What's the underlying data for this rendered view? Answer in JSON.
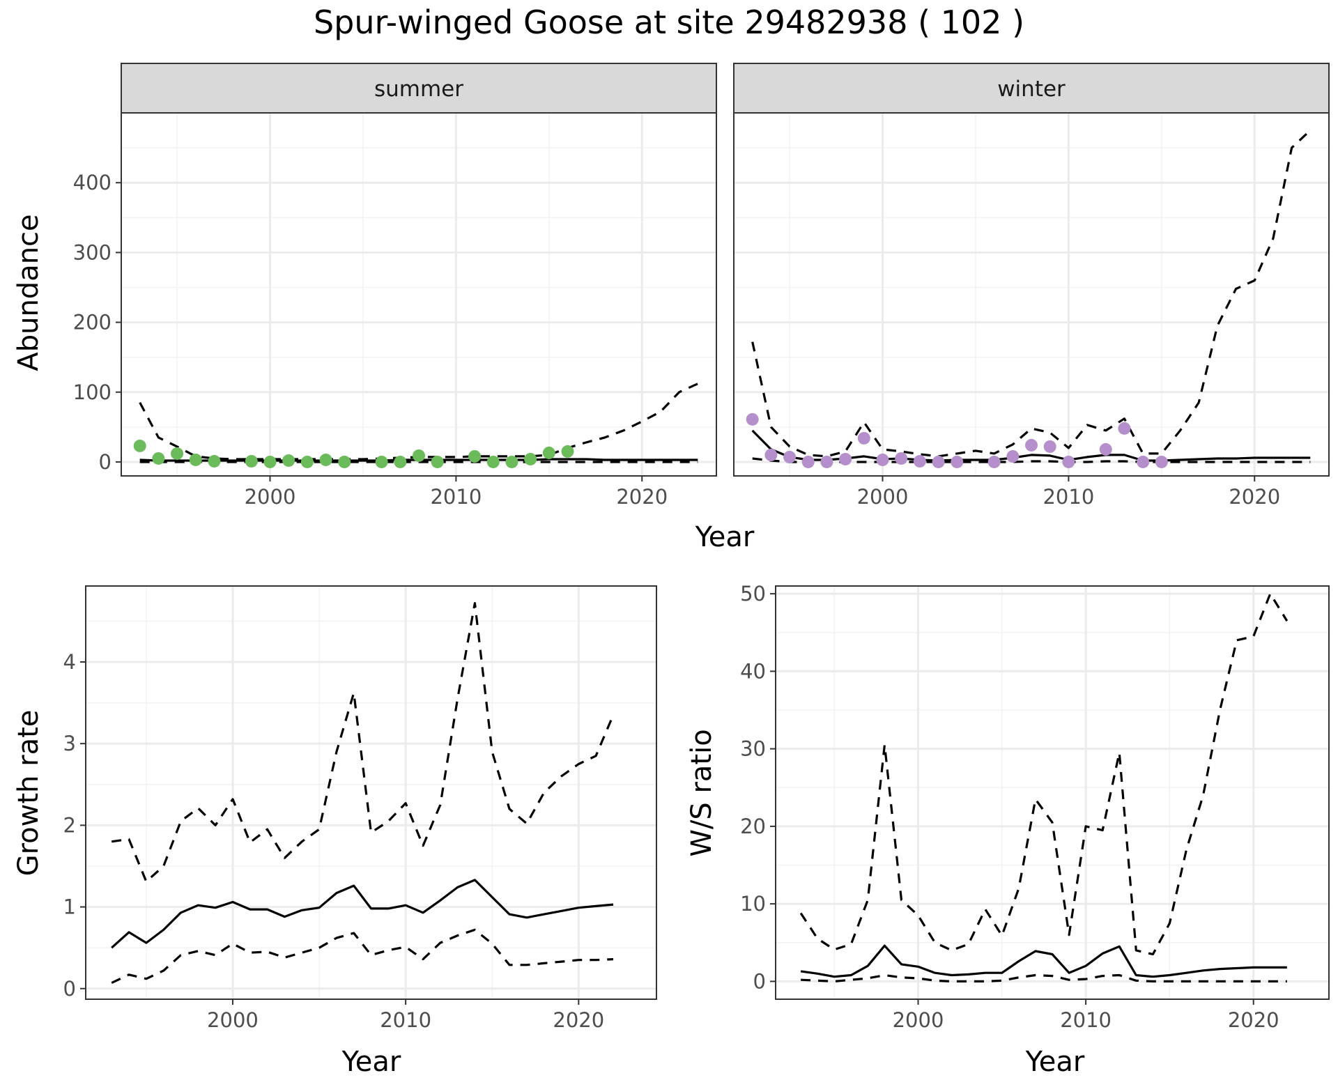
{
  "title": "Spur-winged Goose at site 29482938 ( 102 )",
  "chart_data": [
    {
      "type": "scatter",
      "facet": "summer",
      "xlabel": "Year",
      "ylabel": "Abundance",
      "xlim": [
        1992,
        2024
      ],
      "ylim": [
        -20,
        500
      ],
      "x_ticks": [
        2000,
        2010,
        2020
      ],
      "y_ticks": [
        0,
        100,
        200,
        300,
        400
      ],
      "point_color": "#6cbb5a",
      "grid": true,
      "points": {
        "x": [
          1993,
          1994,
          1995,
          1996,
          1997,
          1999,
          2000,
          2001,
          2002,
          2003,
          2004,
          2006,
          2007,
          2008,
          2009,
          2011,
          2012,
          2013,
          2014,
          2015,
          2016
        ],
        "y": [
          23,
          5,
          12,
          3,
          1,
          1,
          0,
          2,
          0,
          3,
          0,
          0,
          0,
          9,
          0,
          8,
          0,
          0,
          4,
          13,
          15
        ]
      },
      "fit": {
        "x": [
          1993,
          1994,
          1995,
          1996,
          1997,
          1998,
          1999,
          2000,
          2001,
          2002,
          2003,
          2004,
          2005,
          2006,
          2007,
          2008,
          2009,
          2010,
          2011,
          2012,
          2013,
          2014,
          2015,
          2016,
          2017,
          2018,
          2019,
          2020,
          2021,
          2022,
          2023
        ],
        "y": [
          3,
          2,
          2,
          2,
          2,
          2,
          2,
          2,
          2,
          2,
          2,
          2,
          2,
          2,
          3,
          3,
          3,
          3,
          3,
          3,
          3,
          3,
          4,
          4,
          4,
          3,
          3,
          3,
          3,
          3,
          3
        ]
      },
      "upper": {
        "x": [
          1993,
          1994,
          1995,
          1996,
          1997,
          1998,
          1999,
          2000,
          2001,
          2002,
          2003,
          2004,
          2005,
          2006,
          2007,
          2008,
          2009,
          2010,
          2011,
          2012,
          2013,
          2014,
          2015,
          2016,
          2017,
          2018,
          2019,
          2020,
          2021,
          2022,
          2023
        ],
        "y": [
          85,
          35,
          22,
          8,
          5,
          4,
          4,
          4,
          4,
          4,
          4,
          4,
          4,
          5,
          6,
          7,
          7,
          7,
          8,
          8,
          8,
          8,
          10,
          20,
          28,
          35,
          45,
          58,
          72,
          100,
          112
        ]
      },
      "lower": {
        "x": [
          1993,
          1994,
          1995,
          1996,
          1997,
          1998,
          1999,
          2000,
          2001,
          2002,
          2003,
          2004,
          2005,
          2006,
          2007,
          2008,
          2009,
          2010,
          2011,
          2012,
          2013,
          2014,
          2015,
          2016,
          2017,
          2018,
          2019,
          2020,
          2021,
          2022,
          2023
        ],
        "y": [
          0,
          0,
          0,
          0,
          0,
          0,
          0,
          0,
          0,
          0,
          0,
          0,
          0,
          0,
          0,
          0,
          0,
          0,
          0,
          0,
          0,
          0,
          0,
          0,
          0,
          0,
          0,
          0,
          0,
          0,
          0
        ]
      }
    },
    {
      "type": "scatter",
      "facet": "winter",
      "xlabel": "Year",
      "ylabel": "Abundance",
      "xlim": [
        1992,
        2024
      ],
      "ylim": [
        -20,
        500
      ],
      "x_ticks": [
        2000,
        2010,
        2020
      ],
      "y_ticks": [
        0,
        100,
        200,
        300,
        400
      ],
      "point_color": "#b48fcc",
      "grid": true,
      "points": {
        "x": [
          1993,
          1994,
          1995,
          1996,
          1997,
          1998,
          1999,
          2000,
          2001,
          2002,
          2003,
          2004,
          2006,
          2007,
          2008,
          2009,
          2010,
          2012,
          2013,
          2014,
          2015
        ],
        "y": [
          61,
          10,
          7,
          0,
          0,
          4,
          34,
          3,
          5,
          1,
          0,
          0,
          0,
          8,
          24,
          22,
          0,
          18,
          48,
          0,
          0
        ]
      },
      "fit": {
        "x": [
          1993,
          1994,
          1995,
          1996,
          1997,
          1998,
          1999,
          2000,
          2001,
          2002,
          2003,
          2004,
          2005,
          2006,
          2007,
          2008,
          2009,
          2010,
          2011,
          2012,
          2013,
          2014,
          2015,
          2016,
          2017,
          2018,
          2019,
          2020,
          2021,
          2022,
          2023
        ],
        "y": [
          45,
          18,
          7,
          3,
          3,
          5,
          8,
          4,
          5,
          3,
          2,
          3,
          3,
          3,
          6,
          10,
          9,
          3,
          7,
          10,
          10,
          2,
          2,
          3,
          4,
          5,
          5,
          6,
          6,
          6,
          6
        ]
      },
      "upper": {
        "x": [
          1993,
          1994,
          1995,
          1996,
          1997,
          1998,
          1999,
          2000,
          2001,
          2002,
          2003,
          2004,
          2005,
          2006,
          2007,
          2008,
          2009,
          2010,
          2011,
          2012,
          2013,
          2014,
          2015,
          2016,
          2017,
          2018,
          2019,
          2020,
          2021,
          2022,
          2023
        ],
        "y": [
          172,
          50,
          22,
          10,
          8,
          15,
          57,
          18,
          15,
          11,
          8,
          12,
          16,
          12,
          25,
          48,
          42,
          20,
          53,
          45,
          62,
          12,
          12,
          45,
          85,
          195,
          248,
          260,
          320,
          450,
          475
        ]
      },
      "lower": {
        "x": [
          1993,
          1994,
          1995,
          1996,
          1997,
          1998,
          1999,
          2000,
          2001,
          2002,
          2003,
          2004,
          2005,
          2006,
          2007,
          2008,
          2009,
          2010,
          2011,
          2012,
          2013,
          2014,
          2015,
          2016,
          2017,
          2018,
          2019,
          2020,
          2021,
          2022,
          2023
        ],
        "y": [
          5,
          2,
          0,
          0,
          0,
          0,
          0,
          0,
          0,
          0,
          0,
          0,
          0,
          0,
          0,
          1,
          1,
          0,
          0,
          1,
          1,
          0,
          0,
          0,
          0,
          0,
          0,
          0,
          0,
          0,
          0
        ]
      }
    },
    {
      "type": "line",
      "xlabel": "Year",
      "ylabel": "Growth rate",
      "xlim": [
        1991.5,
        2024.5
      ],
      "ylim": [
        -0.13,
        4.93
      ],
      "x_ticks": [
        2000,
        2010,
        2020
      ],
      "y_ticks": [
        0,
        1,
        2,
        3,
        4
      ],
      "grid": true,
      "fit": {
        "x": [
          1993,
          1994,
          1995,
          1996,
          1997,
          1998,
          1999,
          2000,
          2001,
          2002,
          2003,
          2004,
          2005,
          2006,
          2007,
          2008,
          2009,
          2010,
          2011,
          2012,
          2013,
          2014,
          2015,
          2016,
          2017,
          2018,
          2019,
          2020,
          2021,
          2022
        ],
        "y": [
          0.5,
          0.69,
          0.56,
          0.72,
          0.93,
          1.02,
          0.99,
          1.06,
          0.97,
          0.97,
          0.88,
          0.96,
          0.99,
          1.17,
          1.26,
          0.98,
          0.98,
          1.02,
          0.93,
          1.08,
          1.24,
          1.33,
          1.12,
          0.91,
          0.87,
          0.91,
          0.95,
          0.99,
          1.01,
          1.03
        ]
      },
      "upper": {
        "x": [
          1993,
          1994,
          1995,
          1996,
          1997,
          1998,
          1999,
          2000,
          2001,
          2002,
          2003,
          2004,
          2005,
          2006,
          2007,
          2008,
          2009,
          2010,
          2011,
          2012,
          2013,
          2014,
          2015,
          2016,
          2017,
          2018,
          2019,
          2020,
          2021,
          2022
        ],
        "y": [
          1.8,
          1.83,
          1.31,
          1.5,
          2.05,
          2.21,
          2.0,
          2.32,
          1.79,
          1.95,
          1.6,
          1.8,
          1.95,
          2.9,
          3.62,
          1.91,
          2.05,
          2.27,
          1.75,
          2.25,
          3.55,
          4.72,
          2.9,
          2.2,
          2.02,
          2.4,
          2.6,
          2.75,
          2.85,
          3.35
        ]
      },
      "lower": {
        "x": [
          1993,
          1994,
          1995,
          1996,
          1997,
          1998,
          1999,
          2000,
          2001,
          2002,
          2003,
          2004,
          2005,
          2006,
          2007,
          2008,
          2009,
          2010,
          2011,
          2012,
          2013,
          2014,
          2015,
          2016,
          2017,
          2018,
          2019,
          2020,
          2021,
          2022
        ],
        "y": [
          0.07,
          0.17,
          0.12,
          0.22,
          0.41,
          0.46,
          0.41,
          0.55,
          0.44,
          0.45,
          0.38,
          0.44,
          0.5,
          0.62,
          0.68,
          0.41,
          0.47,
          0.51,
          0.36,
          0.56,
          0.65,
          0.72,
          0.55,
          0.29,
          0.29,
          0.31,
          0.33,
          0.35,
          0.35,
          0.36
        ]
      }
    },
    {
      "type": "line",
      "xlabel": "Year",
      "ylabel": "W/S ratio",
      "xlim": [
        1991.5,
        2024.5
      ],
      "ylim": [
        -2.3,
        51
      ],
      "x_ticks": [
        2000,
        2010,
        2020
      ],
      "y_ticks": [
        0,
        10,
        20,
        30,
        40,
        50
      ],
      "grid": true,
      "fit": {
        "x": [
          1993,
          1994,
          1995,
          1996,
          1997,
          1998,
          1999,
          2000,
          2001,
          2002,
          2003,
          2004,
          2005,
          2006,
          2007,
          2008,
          2009,
          2010,
          2011,
          2012,
          2013,
          2014,
          2015,
          2016,
          2017,
          2018,
          2019,
          2020,
          2021,
          2022
        ],
        "y": [
          1.3,
          1.0,
          0.6,
          0.8,
          2.0,
          4.6,
          2.2,
          1.9,
          1.1,
          0.8,
          0.9,
          1.1,
          1.1,
          2.6,
          3.9,
          3.5,
          1.1,
          2.0,
          3.6,
          4.5,
          0.8,
          0.6,
          0.8,
          1.1,
          1.4,
          1.6,
          1.7,
          1.8,
          1.8,
          1.8
        ]
      },
      "upper": {
        "x": [
          1993,
          1994,
          1995,
          1996,
          1997,
          1998,
          1999,
          2000,
          2001,
          2002,
          2003,
          2004,
          2005,
          2006,
          2007,
          2008,
          2009,
          2010,
          2011,
          2012,
          2013,
          2014,
          2015,
          2016,
          2017,
          2018,
          2019,
          2020,
          2021,
          2022
        ],
        "y": [
          8.8,
          5.5,
          4.1,
          4.8,
          10.5,
          30.5,
          10.5,
          8.5,
          5.0,
          4.0,
          4.8,
          9.3,
          5.9,
          12.0,
          23.5,
          20.5,
          6.0,
          20.0,
          19.5,
          29.5,
          4.0,
          3.5,
          7.5,
          17.0,
          24.0,
          35.0,
          44.0,
          44.5,
          50.0,
          46.5
        ]
      },
      "lower": {
        "x": [
          1993,
          1994,
          1995,
          1996,
          1997,
          1998,
          1999,
          2000,
          2001,
          2002,
          2003,
          2004,
          2005,
          2006,
          2007,
          2008,
          2009,
          2010,
          2011,
          2012,
          2013,
          2014,
          2015,
          2016,
          2017,
          2018,
          2019,
          2020,
          2021,
          2022
        ],
        "y": [
          0.2,
          0.1,
          0,
          0.2,
          0.4,
          0.8,
          0.5,
          0.4,
          0.1,
          0,
          0,
          0,
          0.1,
          0.5,
          0.8,
          0.7,
          0.2,
          0.3,
          0.7,
          0.8,
          0.1,
          0,
          0,
          0,
          0,
          0,
          0,
          0,
          0,
          0
        ]
      }
    }
  ]
}
